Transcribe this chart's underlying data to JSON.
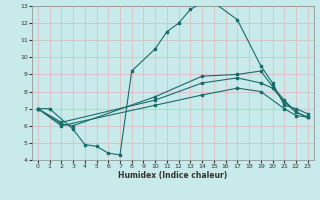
{
  "title": "",
  "xlabel": "Humidex (Indice chaleur)",
  "ylabel": "",
  "xlim": [
    -0.5,
    23.5
  ],
  "ylim": [
    4,
    13
  ],
  "xticks": [
    0,
    1,
    2,
    3,
    4,
    5,
    6,
    7,
    8,
    9,
    10,
    11,
    12,
    13,
    14,
    15,
    16,
    17,
    18,
    19,
    20,
    21,
    22,
    23
  ],
  "yticks": [
    4,
    5,
    6,
    7,
    8,
    9,
    10,
    11,
    12,
    13
  ],
  "background_color": "#c8eaea",
  "grid_color": "#d8b8b8",
  "line_color": "#1a6b6b",
  "lines": [
    {
      "x": [
        0,
        1,
        3,
        4,
        5,
        6,
        7,
        8,
        10,
        11,
        12,
        13,
        14,
        15,
        17,
        19,
        20,
        21,
        22,
        23
      ],
      "y": [
        7.0,
        7.0,
        5.8,
        4.9,
        4.8,
        4.4,
        4.3,
        9.2,
        10.5,
        11.5,
        12.0,
        12.8,
        13.2,
        13.2,
        12.2,
        9.5,
        8.5,
        7.2,
        7.0,
        6.7
      ]
    },
    {
      "x": [
        0,
        2,
        3,
        10,
        14,
        17,
        19,
        20,
        21,
        22,
        23
      ],
      "y": [
        7.0,
        6.1,
        6.0,
        7.7,
        8.9,
        9.0,
        9.2,
        8.3,
        7.5,
        6.8,
        6.5
      ]
    },
    {
      "x": [
        0,
        2,
        10,
        14,
        17,
        19,
        20,
        21,
        22,
        23
      ],
      "y": [
        7.0,
        6.2,
        7.5,
        8.5,
        8.8,
        8.5,
        8.2,
        7.4,
        6.8,
        6.5
      ]
    },
    {
      "x": [
        0,
        2,
        10,
        14,
        17,
        19,
        21,
        22,
        23
      ],
      "y": [
        7.0,
        6.0,
        7.2,
        7.8,
        8.2,
        8.0,
        7.0,
        6.6,
        6.5
      ]
    }
  ]
}
